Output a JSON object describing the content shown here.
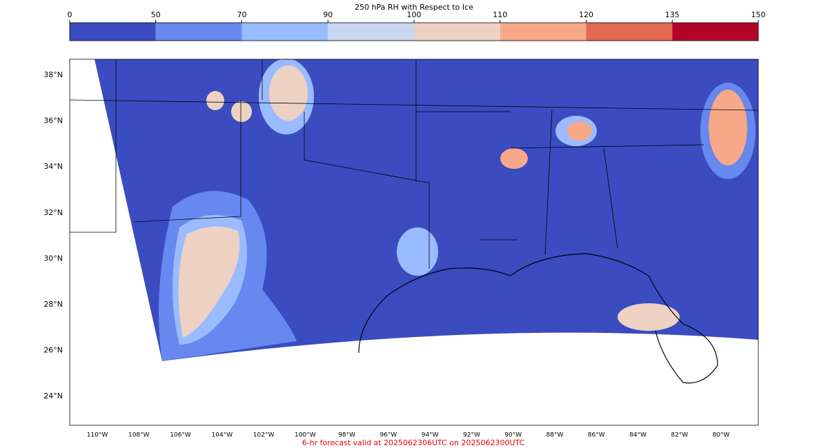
{
  "colorbar": {
    "title": "250 hPa RH with Respect to Ice",
    "ticks": [
      0,
      50,
      70,
      90,
      100,
      110,
      120,
      135,
      150
    ],
    "colors": [
      "#3b4cc0",
      "#6788ee",
      "#9abbff",
      "#c9d7f0",
      "#edd1c2",
      "#f7a889",
      "#e26952",
      "#b40426"
    ]
  },
  "map": {
    "lat_labels": [
      "38°N",
      "36°N",
      "34°N",
      "32°N",
      "30°N",
      "28°N",
      "26°N",
      "24°N"
    ],
    "lon_labels": [
      "110°W",
      "108°W",
      "106°W",
      "104°W",
      "102°W",
      "100°W",
      "98°W",
      "96°W",
      "94°W",
      "92°W",
      "90°W",
      "88°W",
      "86°W",
      "84°W",
      "82°W",
      "80°W"
    ],
    "footer": "6-hr forecast valid at 2025062306UTC on 2025062300UTC"
  }
}
